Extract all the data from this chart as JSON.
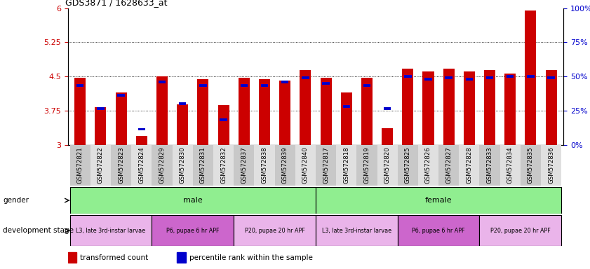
{
  "title": "GDS3871 / 1628633_at",
  "samples": [
    "GSM572821",
    "GSM572822",
    "GSM572823",
    "GSM572824",
    "GSM572829",
    "GSM572830",
    "GSM572831",
    "GSM572832",
    "GSM572837",
    "GSM572838",
    "GSM572839",
    "GSM572840",
    "GSM572817",
    "GSM572818",
    "GSM572819",
    "GSM572820",
    "GSM572825",
    "GSM572826",
    "GSM572827",
    "GSM572828",
    "GSM572833",
    "GSM572834",
    "GSM572835",
    "GSM572836"
  ],
  "red_values": [
    4.47,
    3.83,
    4.15,
    3.2,
    4.5,
    3.9,
    4.45,
    3.88,
    4.47,
    4.44,
    4.42,
    4.65,
    4.48,
    4.15,
    4.47,
    3.38,
    4.68,
    4.62,
    4.67,
    4.62,
    4.65,
    4.57,
    5.95,
    4.65
  ],
  "blue_values": [
    4.28,
    3.77,
    4.06,
    3.32,
    4.35,
    3.88,
    4.28,
    3.53,
    4.28,
    4.28,
    4.35,
    4.44,
    4.32,
    3.82,
    4.28,
    3.77,
    4.47,
    4.42,
    4.44,
    4.42,
    4.44,
    4.47,
    4.47,
    4.44
  ],
  "ylim": [
    3.0,
    6.0
  ],
  "yticks_left": [
    3.0,
    3.75,
    4.5,
    5.25,
    6.0
  ],
  "ytick_labels_left": [
    "3",
    "3.75",
    "4.5",
    "5.25",
    "6"
  ],
  "yticks_right": [
    0,
    25,
    50,
    75,
    100
  ],
  "ytick_labels_right": [
    "0%",
    "25%",
    "50%",
    "75%",
    "100%"
  ],
  "grid_lines": [
    3.75,
    4.5,
    5.25
  ],
  "gender_groups": [
    {
      "label": "male",
      "start": 0,
      "end": 11,
      "color": "#90ee90"
    },
    {
      "label": "female",
      "start": 12,
      "end": 23,
      "color": "#90ee90"
    }
  ],
  "dev_stage_groups": [
    {
      "label": "L3, late 3rd-instar larvae",
      "start": 0,
      "end": 3,
      "color": "#eab4ea"
    },
    {
      "label": "P6, pupae 6 hr APF",
      "start": 4,
      "end": 7,
      "color": "#cc66cc"
    },
    {
      "label": "P20, pupae 20 hr APF",
      "start": 8,
      "end": 11,
      "color": "#eab4ea"
    },
    {
      "label": "L3, late 3rd-instar larvae",
      "start": 12,
      "end": 15,
      "color": "#eab4ea"
    },
    {
      "label": "P6, pupae 6 hr APF",
      "start": 16,
      "end": 19,
      "color": "#cc66cc"
    },
    {
      "label": "P20, pupae 20 hr APF",
      "start": 20,
      "end": 23,
      "color": "#eab4ea"
    }
  ],
  "legend_red": "transformed count",
  "legend_blue": "percentile rank within the sample",
  "bar_width": 0.55,
  "red_color": "#cc0000",
  "blue_color": "#0000cc",
  "left_tick_color": "#cc0000",
  "right_tick_color": "#0000cc",
  "xtick_colors": [
    "#c8c8c8",
    "#e0e0e0"
  ]
}
